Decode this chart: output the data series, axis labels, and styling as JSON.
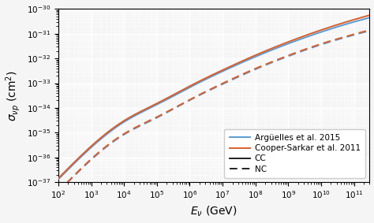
{
  "xlabel": "$E_{\\nu}$ (GeV)",
  "ylabel": "$\\sigma_{\\nu p}$ (cm$^2$)",
  "xmin": 100.0,
  "xmax": 300000000000.0,
  "ymin": 1e-37,
  "ymax": 1e-30,
  "blue_color": "#5b9bd5",
  "red_color": "#d95f2b",
  "black_color": "#222222",
  "legend_labels": [
    "Argüelles et al. 2015",
    "Cooper-Sarkar et al. 2011",
    "CC",
    "NC"
  ],
  "background_color": "#f5f5f5",
  "grid_color": "#ffffff",
  "lw": 1.4,
  "cc_argu_pts_x": [
    2.0,
    3.0,
    4.0,
    5.0,
    6.0,
    7.0,
    8.0,
    9.0,
    10.0,
    11.0,
    11.5
  ],
  "cc_argu_pts_y": [
    -36.89,
    -35.6,
    -34.57,
    -33.87,
    -33.17,
    -32.52,
    -31.93,
    -31.4,
    -30.93,
    -30.52,
    -30.34
  ],
  "nc_argu_pts_x": [
    2.0,
    3.0,
    4.0,
    5.0,
    6.0,
    7.0,
    8.0,
    9.0,
    10.0,
    11.0,
    11.5
  ],
  "nc_argu_pts_y": [
    -37.4,
    -36.1,
    -35.08,
    -34.4,
    -33.69,
    -33.04,
    -32.44,
    -31.91,
    -31.44,
    -31.05,
    -30.87
  ],
  "cc_cooper_pts_x": [
    2.0,
    3.0,
    4.0,
    5.0,
    6.0,
    7.0,
    8.0,
    9.0,
    10.0,
    11.0,
    11.5
  ],
  "cc_cooper_pts_y": [
    -36.85,
    -35.55,
    -34.52,
    -33.82,
    -33.12,
    -32.47,
    -31.87,
    -31.33,
    -30.85,
    -30.43,
    -30.24
  ],
  "nc_cooper_pts_x": [
    2.0,
    3.0,
    4.0,
    5.0,
    6.0,
    7.0,
    8.0,
    9.0,
    10.0,
    11.0,
    11.5
  ],
  "nc_cooper_pts_y": [
    -37.38,
    -36.07,
    -35.05,
    -34.37,
    -33.67,
    -33.01,
    -32.41,
    -31.88,
    -31.41,
    -31.02,
    -30.84
  ],
  "legend_loc": "lower right",
  "legend_fontsize": 7.5,
  "tick_labelsize": 7.5,
  "axis_labelsize": 10
}
